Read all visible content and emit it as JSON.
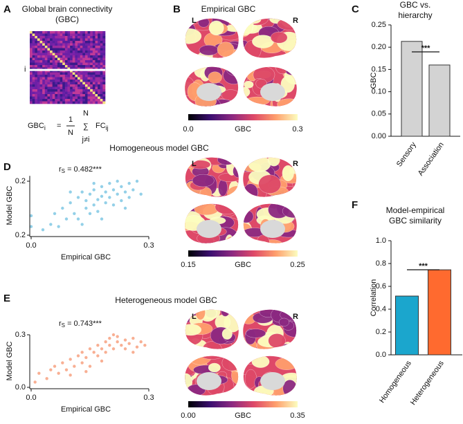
{
  "chart_data": [
    {
      "type": "matrix",
      "panel": "A",
      "title_lines": [
        "Global brain connectivity",
        "(GBC)"
      ],
      "row_label": "i",
      "formula": {
        "lhs": "GBC",
        "lhs_sub": "i",
        "equals": "=",
        "num": "1",
        "den": "N",
        "sum": "∑",
        "sum_top": "N",
        "sum_bottom": "j≠i",
        "term": "FC",
        "term_sub": "ij"
      }
    },
    {
      "type": "brain_map",
      "panel": "B",
      "title": "Empirical GBC",
      "hemisphere_labels": [
        "L",
        "R"
      ],
      "colormap": [
        "#000004",
        "#3b0f70",
        "#8c2981",
        "#de4968",
        "#fe9f6d",
        "#fcfdbf"
      ],
      "clim": [
        0,
        0.3
      ],
      "cticks": [
        {
          "value": 0,
          "label": "0.0"
        },
        0.3
      ],
      "colorbar_label": "GBC"
    },
    {
      "type": "bar",
      "panel": "C",
      "title_lines": [
        "GBC vs.",
        "hierarchy"
      ],
      "categories": [
        "Sensory",
        "Association"
      ],
      "values": [
        0.213,
        0.16
      ],
      "colors": [
        "#d3d3d3",
        "#d3d3d3"
      ],
      "ylabel": "GBC",
      "ylim": [
        0,
        0.25
      ],
      "yticks": [
        {
          "value": 0,
          "label": "0.00"
        },
        0.05,
        {
          "value": 0.1,
          "label": "0.10"
        },
        0.15,
        {
          "value": 0.2,
          "label": "0.20"
        },
        0.25
      ],
      "significance": "***"
    },
    {
      "type": "scatter",
      "panel": "D",
      "title": "Homogeneous model GBC",
      "color": "#4bb0d8",
      "annotation": {
        "symbol": "r",
        "sub": "S",
        "text": " = 0.482***"
      },
      "xlabel": "Empirical GBC",
      "ylabel": "Model GBC",
      "xlim": [
        0,
        0.3
      ],
      "xticks": [
        {
          "value": 0,
          "label": "0.0"
        },
        0.3
      ],
      "ylim": [
        0.15,
        0.205
      ],
      "yticks": [
        {
          "value": 0.15,
          "label": "0.2"
        },
        0.2
      ],
      "x": [
        0.0,
        0.0,
        0.03,
        0.05,
        0.06,
        0.07,
        0.08,
        0.09,
        0.1,
        0.11,
        0.12,
        0.12,
        0.13,
        0.14,
        0.14,
        0.15,
        0.15,
        0.16,
        0.16,
        0.17,
        0.17,
        0.18,
        0.18,
        0.19,
        0.19,
        0.2,
        0.2,
        0.21,
        0.21,
        0.22,
        0.22,
        0.23,
        0.23,
        0.24,
        0.25,
        0.25,
        0.26,
        0.27,
        0.28,
        0.18,
        0.13,
        0.1,
        0.16,
        0.24
      ],
      "values": [
        0.168,
        0.158,
        0.155,
        0.16,
        0.17,
        0.158,
        0.175,
        0.165,
        0.18,
        0.17,
        0.185,
        0.165,
        0.19,
        0.175,
        0.182,
        0.17,
        0.188,
        0.178,
        0.192,
        0.183,
        0.172,
        0.186,
        0.195,
        0.18,
        0.19,
        0.185,
        0.198,
        0.178,
        0.192,
        0.188,
        0.2,
        0.182,
        0.195,
        0.19,
        0.185,
        0.198,
        0.192,
        0.2,
        0.188,
        0.165,
        0.16,
        0.19,
        0.198,
        0.175
      ]
    },
    {
      "type": "brain_map",
      "hemisphere_labels": [
        "L",
        "R"
      ],
      "colormap": [
        "#000004",
        "#3b0f70",
        "#8c2981",
        "#de4968",
        "#fe9f6d",
        "#fcfdbf"
      ],
      "clim": [
        0.15,
        0.25
      ],
      "cticks": [
        0.15,
        0.25
      ],
      "colorbar_label": "GBC"
    },
    {
      "type": "scatter",
      "panel": "E",
      "title": "Heterogeneous model GBC",
      "color": "#f47a4b",
      "annotation": {
        "symbol": "r",
        "sub": "S",
        "text": " = 0.743***"
      },
      "xlabel": "Empirical GBC",
      "ylabel": "Model GBC",
      "xlim": [
        0,
        0.3
      ],
      "xticks": [
        {
          "value": 0,
          "label": "0.0"
        },
        0.3
      ],
      "ylim": [
        0,
        0.3
      ],
      "yticks": [
        {
          "value": 0,
          "label": "0.0"
        },
        0.3
      ],
      "x": [
        0.01,
        0.02,
        0.04,
        0.05,
        0.06,
        0.07,
        0.08,
        0.09,
        0.1,
        0.11,
        0.12,
        0.13,
        0.13,
        0.14,
        0.15,
        0.15,
        0.16,
        0.17,
        0.17,
        0.18,
        0.19,
        0.19,
        0.2,
        0.2,
        0.21,
        0.22,
        0.22,
        0.23,
        0.24,
        0.24,
        0.25,
        0.26,
        0.27,
        0.28,
        0.29,
        0.14,
        0.1,
        0.18,
        0.21,
        0.26
      ],
      "values": [
        0.03,
        0.08,
        0.05,
        0.1,
        0.12,
        0.08,
        0.14,
        0.1,
        0.16,
        0.12,
        0.18,
        0.14,
        0.2,
        0.17,
        0.22,
        0.12,
        0.2,
        0.24,
        0.18,
        0.22,
        0.26,
        0.2,
        0.24,
        0.28,
        0.22,
        0.26,
        0.29,
        0.24,
        0.27,
        0.22,
        0.25,
        0.28,
        0.23,
        0.26,
        0.24,
        0.09,
        0.07,
        0.15,
        0.3,
        0.2
      ]
    },
    {
      "type": "brain_map",
      "hemisphere_labels": [
        "L",
        "R"
      ],
      "colormap": [
        "#000004",
        "#3b0f70",
        "#8c2981",
        "#de4968",
        "#fe9f6d",
        "#fcfdbf"
      ],
      "clim": [
        0,
        0.35
      ],
      "cticks": [
        {
          "value": 0,
          "label": "0.00"
        },
        0.35
      ],
      "colorbar_label": "GBC"
    },
    {
      "type": "bar",
      "panel": "F",
      "title_lines": [
        "Model-empirical",
        "GBC similarity"
      ],
      "categories": [
        "Homogeneous",
        "Heterogeneous"
      ],
      "values": [
        0.515,
        0.745
      ],
      "colors": [
        "#1ba6cd",
        "#ff6a2f"
      ],
      "ylabel": "Correlation",
      "ylim": [
        0,
        1
      ],
      "yticks": [
        {
          "value": 0,
          "label": "0.0"
        },
        0.2,
        0.4,
        0.6,
        0.8,
        {
          "value": 1,
          "label": "1.0"
        }
      ],
      "significance": "***"
    }
  ]
}
